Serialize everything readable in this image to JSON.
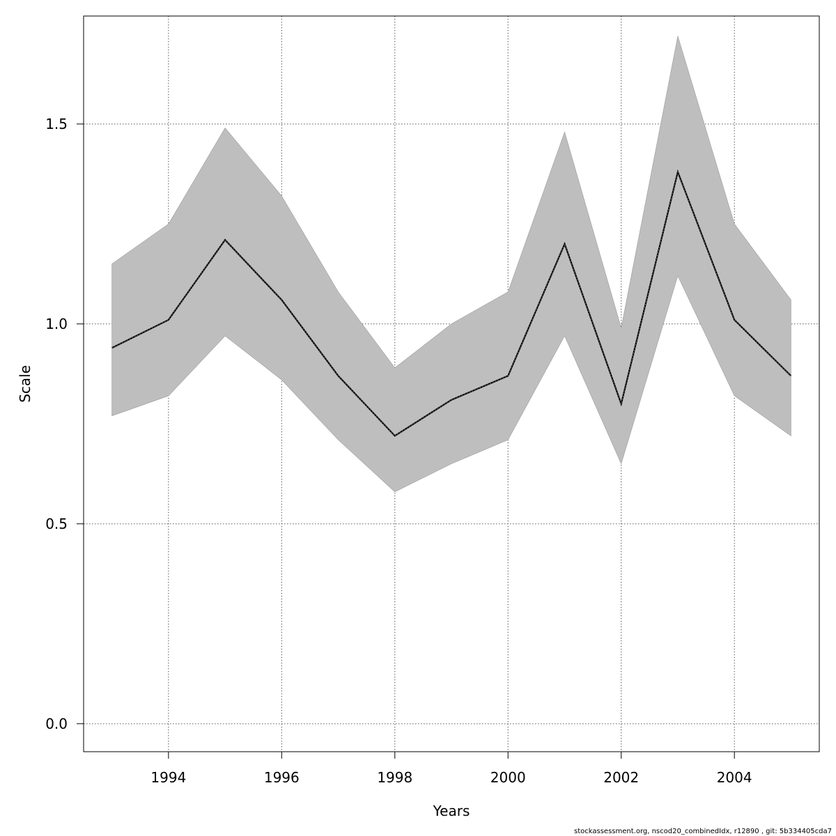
{
  "chart_data": {
    "type": "line",
    "title": "",
    "xlabel": "Years",
    "ylabel": "Scale",
    "xlim": [
      1992.5,
      2005.5
    ],
    "ylim": [
      -0.07,
      1.77
    ],
    "x_ticks": [
      1994,
      1996,
      1998,
      2000,
      2002,
      2004
    ],
    "y_ticks": [
      0.0,
      0.5,
      1.0,
      1.5
    ],
    "y_tick_labels": [
      "0.0",
      "0.5",
      "1.0",
      "1.5"
    ],
    "grid": true,
    "band_color": "#bebebe",
    "line_color": "#000000",
    "x": [
      1993,
      1994,
      1995,
      1996,
      1997,
      1998,
      1999,
      2000,
      2001,
      2002,
      2003,
      2004,
      2005
    ],
    "estimate": [
      0.94,
      1.01,
      1.21,
      1.06,
      0.87,
      0.72,
      0.81,
      0.87,
      1.2,
      0.8,
      1.38,
      1.01,
      0.87
    ],
    "upper": [
      1.15,
      1.25,
      1.49,
      1.32,
      1.08,
      0.89,
      1.0,
      1.08,
      1.48,
      0.99,
      1.72,
      1.25,
      1.06
    ],
    "lower": [
      0.77,
      0.82,
      0.97,
      0.86,
      0.71,
      0.58,
      0.65,
      0.71,
      0.97,
      0.65,
      1.12,
      0.82,
      0.72
    ]
  },
  "footer": "stockassessment.org, nscod20_combinedIdx, r12890 , git: 5b334405cda7"
}
